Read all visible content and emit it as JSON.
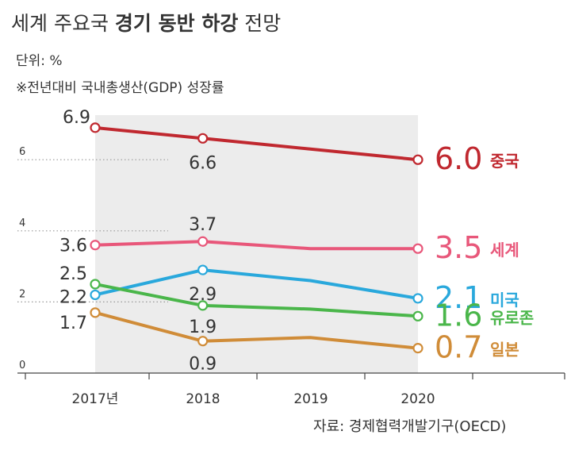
{
  "header": {
    "title_part1": "세계 주요국 ",
    "title_bold": "경기 동반 하강",
    "title_part2": " 전망",
    "unit": "단위: %",
    "note": "※전년대비 국내총생산(GDP) 성장률",
    "source": "자료: 경제협력개발기구(OECD)"
  },
  "chart_data": {
    "type": "line",
    "title": "세계 주요국 경기 동반 하강 전망",
    "x": [
      2017,
      2018,
      2019,
      2020
    ],
    "x_tick_labels": [
      "2017년",
      "2018",
      "2019",
      "2020"
    ],
    "y_ticks": [
      "0",
      "2",
      "4",
      "6"
    ],
    "ylim": [
      0,
      7.3
    ],
    "grid": "dotted horizontal at 2, 4, 6",
    "shaded_region": "2017-2020",
    "series": [
      {
        "name": "중국",
        "color": "#c0282f",
        "values": [
          6.9,
          6.6,
          6.3,
          6.0
        ],
        "point_labels": [
          "6.9",
          "6.6",
          null,
          "6.0"
        ]
      },
      {
        "name": "세계",
        "color": "#e8577a",
        "values": [
          3.6,
          3.7,
          3.5,
          3.5
        ],
        "point_labels": [
          "3.6",
          "3.7",
          null,
          "3.5"
        ]
      },
      {
        "name": "미국",
        "color": "#29a8dc",
        "values": [
          2.2,
          2.9,
          2.6,
          2.1
        ],
        "point_labels": [
          "2.2",
          "2.9",
          null,
          "2.1"
        ]
      },
      {
        "name": "유로존",
        "color": "#4ab64a",
        "values": [
          2.5,
          1.9,
          1.8,
          1.6
        ],
        "point_labels": [
          "2.5",
          "1.9",
          null,
          "1.6"
        ]
      },
      {
        "name": "일본",
        "color": "#d08c38",
        "values": [
          1.7,
          0.9,
          1.0,
          0.7
        ],
        "point_labels": [
          "1.7",
          "0.9",
          null,
          "0.7"
        ]
      }
    ]
  }
}
